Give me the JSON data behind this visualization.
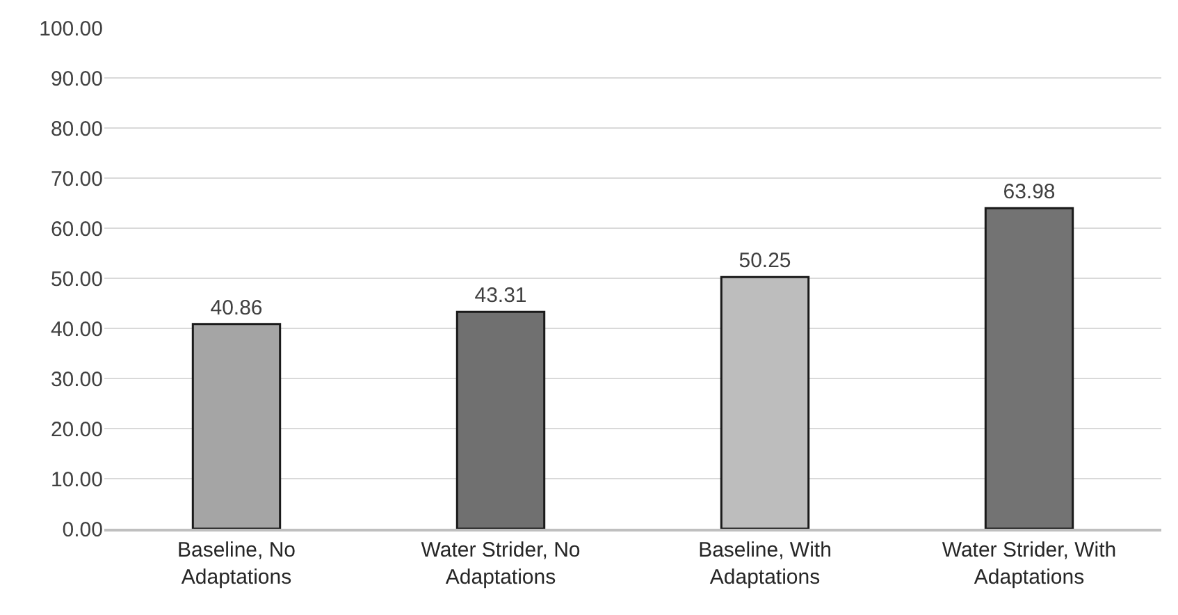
{
  "chart_data": {
    "type": "bar",
    "categories": [
      "Baseline, No Adaptations",
      "Water Strider, No Adaptations",
      "Baseline, With Adaptations",
      "Water Strider, With Adaptations"
    ],
    "values": [
      40.86,
      43.31,
      50.25,
      63.98
    ],
    "colors": [
      "#a5a5a5",
      "#707070",
      "#bdbdbd",
      "#737373"
    ],
    "data_labels": true,
    "ylim": [
      0,
      100
    ],
    "yticks": [
      {
        "value": 0,
        "label": "0.00"
      },
      {
        "value": 10,
        "label": "10.00"
      },
      {
        "value": 20,
        "label": "20.00"
      },
      {
        "value": 30,
        "label": "30.00"
      },
      {
        "value": 40,
        "label": "40.00"
      },
      {
        "value": 50,
        "label": "50.00"
      },
      {
        "value": 60,
        "label": "60.00"
      },
      {
        "value": 70,
        "label": "70.00"
      },
      {
        "value": 80,
        "label": "80.00"
      },
      {
        "value": 90,
        "label": "90.00"
      },
      {
        "value": 100,
        "label": "100.00"
      }
    ],
    "grid": "y"
  }
}
